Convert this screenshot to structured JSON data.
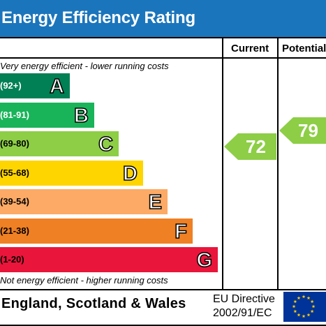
{
  "title": "Energy Efficiency Rating",
  "columns": {
    "current": "Current",
    "potential": "Potential"
  },
  "notes": {
    "top": "Very energy efficient - lower running costs",
    "bottom": "Not energy efficient - higher running costs"
  },
  "footer": {
    "region": "England, Scotland & Wales",
    "directive_line1": "EU Directive",
    "directive_line2": "2002/91/EC"
  },
  "chart_data": {
    "type": "bar",
    "categories": [
      "A",
      "B",
      "C",
      "D",
      "E",
      "F",
      "G"
    ],
    "ranges": [
      "(92+)",
      "(81-91)",
      "(69-80)",
      "(55-68)",
      "(39-54)",
      "(21-38)",
      "(1-20)"
    ],
    "colors": [
      "#008054",
      "#19b459",
      "#8dce46",
      "#ffd500",
      "#fcaa65",
      "#ef8023",
      "#e9153b"
    ],
    "range_text_colors": [
      "#ffffff",
      "#ffffff",
      "#000000",
      "#000000",
      "#000000",
      "#000000",
      "#000000"
    ],
    "current": {
      "value": 72,
      "band": "C",
      "color": "#8dce46"
    },
    "potential": {
      "value": 79,
      "band": "C",
      "color": "#8dce46"
    }
  }
}
